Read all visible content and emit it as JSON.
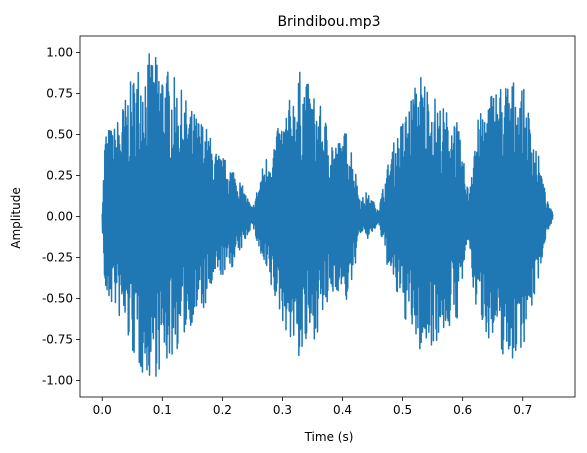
{
  "chart_data": {
    "type": "line",
    "title": "Brindibou.mp3",
    "xlabel": "Time (s)",
    "ylabel": "Amplitude",
    "xlim": [
      -0.037,
      0.787
    ],
    "ylim": [
      -1.1,
      1.1
    ],
    "x_ticks": [
      "0.0",
      "0.1",
      "0.2",
      "0.3",
      "0.4",
      "0.5",
      "0.6",
      "0.7"
    ],
    "y_ticks": [
      "1.00",
      "0.75",
      "0.50",
      "0.25",
      "0.00",
      "-0.25",
      "-0.50",
      "-0.75",
      "-1.00"
    ],
    "grid": false,
    "series": [
      {
        "color": "#1f77b4",
        "envelope": [
          {
            "t": 0.0,
            "max": 0.05,
            "min": -0.05
          },
          {
            "t": 0.005,
            "max": 0.55,
            "min": -0.55
          },
          {
            "t": 0.02,
            "max": 0.55,
            "min": -0.55
          },
          {
            "t": 0.04,
            "max": 0.75,
            "min": -0.75
          },
          {
            "t": 0.06,
            "max": 0.95,
            "min": -0.95
          },
          {
            "t": 0.08,
            "max": 1.0,
            "min": -1.0
          },
          {
            "t": 0.1,
            "max": 0.95,
            "min": -0.95
          },
          {
            "t": 0.12,
            "max": 0.85,
            "min": -0.85
          },
          {
            "t": 0.15,
            "max": 0.65,
            "min": -0.65
          },
          {
            "t": 0.17,
            "max": 0.58,
            "min": -0.58
          },
          {
            "t": 0.19,
            "max": 0.4,
            "min": -0.4
          },
          {
            "t": 0.22,
            "max": 0.3,
            "min": -0.3
          },
          {
            "t": 0.25,
            "max": 0.05,
            "min": -0.05
          },
          {
            "t": 0.27,
            "max": 0.35,
            "min": -0.35
          },
          {
            "t": 0.3,
            "max": 0.6,
            "min": -0.65
          },
          {
            "t": 0.33,
            "max": 0.9,
            "min": -0.9
          },
          {
            "t": 0.36,
            "max": 0.7,
            "min": -0.7
          },
          {
            "t": 0.39,
            "max": 0.45,
            "min": -0.45
          },
          {
            "t": 0.41,
            "max": 0.55,
            "min": -0.55
          },
          {
            "t": 0.43,
            "max": 0.1,
            "min": -0.1
          },
          {
            "t": 0.44,
            "max": 0.15,
            "min": -0.15
          },
          {
            "t": 0.46,
            "max": 0.05,
            "min": -0.05
          },
          {
            "t": 0.48,
            "max": 0.4,
            "min": -0.4
          },
          {
            "t": 0.5,
            "max": 0.6,
            "min": -0.6
          },
          {
            "t": 0.53,
            "max": 0.9,
            "min": -0.85
          },
          {
            "t": 0.56,
            "max": 0.7,
            "min": -0.75
          },
          {
            "t": 0.59,
            "max": 0.6,
            "min": -0.65
          },
          {
            "t": 0.61,
            "max": 0.15,
            "min": -0.15
          },
          {
            "t": 0.62,
            "max": 0.55,
            "min": -0.55
          },
          {
            "t": 0.65,
            "max": 0.8,
            "min": -0.8
          },
          {
            "t": 0.68,
            "max": 0.85,
            "min": -0.9
          },
          {
            "t": 0.7,
            "max": 0.8,
            "min": -0.8
          },
          {
            "t": 0.72,
            "max": 0.5,
            "min": -0.5
          },
          {
            "t": 0.74,
            "max": 0.1,
            "min": -0.1
          },
          {
            "t": 0.75,
            "max": 0.02,
            "min": -0.02
          }
        ]
      }
    ]
  }
}
